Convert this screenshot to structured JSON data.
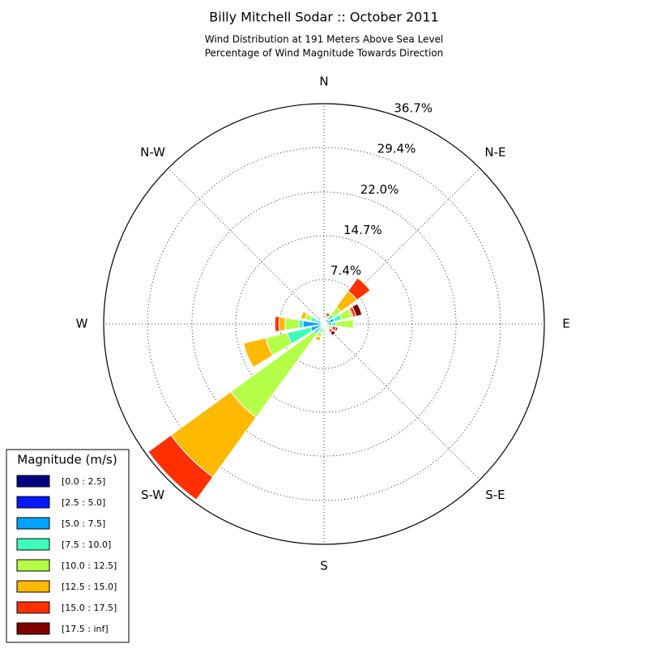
{
  "chart_data": {
    "type": "windrose",
    "title": "Billy Mitchell Sodar :: October 2011",
    "subtitle": [
      "Wind Distribution at 191 Meters Above Sea Level",
      "Percentage of Wind Magnitude Towards Direction"
    ],
    "categories": [
      "N",
      null,
      "N-E",
      null,
      "E",
      null,
      "S-E",
      null,
      "S",
      null,
      "S-W",
      null,
      "W",
      null,
      "N-W",
      null
    ],
    "ylim": [
      0,
      36.7
    ],
    "yticks": [
      {
        "value": 7.4,
        "label": "7.4%"
      },
      {
        "value": 14.7,
        "label": "14.7%"
      },
      {
        "value": 22.0,
        "label": "22.0%"
      },
      {
        "value": 29.4,
        "label": "29.4%"
      },
      {
        "value": 36.7,
        "label": "36.7%"
      }
    ],
    "grid": true,
    "legend_title": "Magnitude (m/s)",
    "legend_position": "lower left",
    "series": [
      {
        "name": "[0.0 : 2.5]",
        "color": "#000080",
        "values": [
          0,
          0,
          0,
          0,
          0,
          0,
          0,
          0,
          0,
          0,
          0,
          0,
          0,
          0,
          0,
          0
        ]
      },
      {
        "name": "[2.5 : 5.0]",
        "color": "#0019ff",
        "values": [
          0.1,
          0.2,
          0.2,
          0.3,
          0.3,
          0.2,
          0.2,
          0.1,
          0.2,
          0.2,
          0.2,
          0.3,
          0.5,
          0.3,
          0.1,
          0.1
        ]
      },
      {
        "name": "[5.0 : 7.5]",
        "color": "#00a4ff",
        "values": [
          0.2,
          0.3,
          0.8,
          1.5,
          1,
          0.3,
          0.3,
          0.2,
          0.3,
          0.5,
          0.5,
          2,
          3,
          1,
          0.2,
          0.2
        ]
      },
      {
        "name": "[7.5 : 10.0]",
        "color": "#3dffba",
        "values": [
          0.2,
          0.3,
          1,
          1.2,
          0.7,
          0.3,
          0.2,
          0.2,
          0.3,
          0.8,
          1.5,
          4,
          0.7,
          1,
          0.3,
          0.2
        ]
      },
      {
        "name": "[10.0 : 12.5]",
        "color": "#b5ff49",
        "values": [
          0.2,
          0.3,
          1.5,
          1.7,
          2.9,
          0.3,
          0.3,
          0.2,
          0.2,
          0.8,
          17,
          3.7,
          2.3,
          1,
          0.2,
          0.2
        ]
      },
      {
        "name": "[12.5 : 15.0]",
        "color": "#ffb900",
        "values": [
          0,
          0.3,
          3.3,
          0.3,
          0,
          0.4,
          0.3,
          0,
          0,
          0.6,
          12.3,
          3.8,
          1,
          0.7,
          0,
          0
        ]
      },
      {
        "name": "[15.0 : 17.5]",
        "color": "#ff3000",
        "values": [
          0,
          0.5,
          2.7,
          0.5,
          0,
          0.6,
          0.5,
          0,
          0,
          0,
          4.7,
          0,
          0.7,
          0,
          0,
          0
        ]
      },
      {
        "name": "[17.5 : inf]",
        "color": "#800000",
        "values": [
          0,
          0,
          0,
          1.0,
          0,
          0.3,
          0.6,
          0,
          0,
          0,
          0,
          0,
          0,
          0,
          0,
          0
        ]
      }
    ]
  }
}
